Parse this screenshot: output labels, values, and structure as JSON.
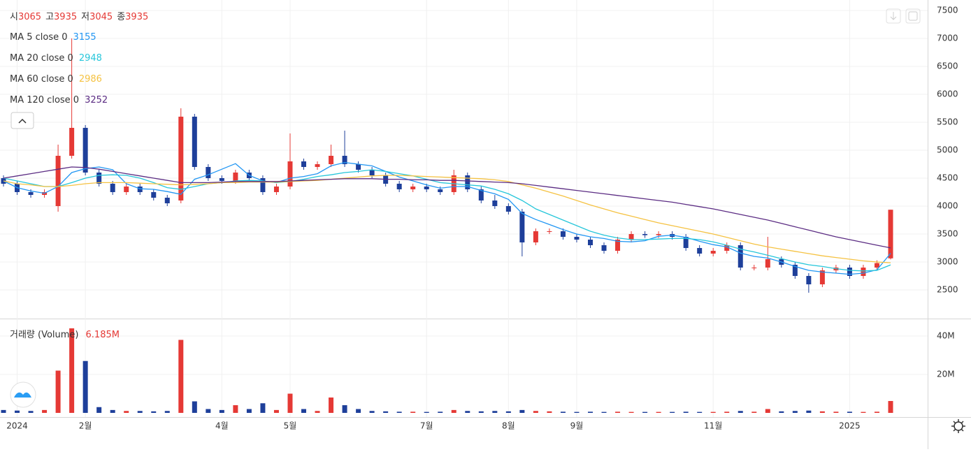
{
  "chart_data": {
    "type": "candlestick",
    "categories": [
      null,
      "2024",
      null,
      null,
      null,
      null,
      "2월",
      null,
      null,
      null,
      null,
      null,
      null,
      null,
      null,
      null,
      "4월",
      null,
      null,
      null,
      null,
      "5월",
      null,
      null,
      null,
      null,
      null,
      null,
      null,
      null,
      null,
      "7월",
      null,
      null,
      null,
      null,
      null,
      "8월",
      null,
      null,
      null,
      null,
      "9월",
      null,
      null,
      null,
      null,
      null,
      null,
      null,
      null,
      null,
      "11월",
      null,
      null,
      null,
      null,
      null,
      null,
      null,
      null,
      null,
      "2025",
      null,
      null,
      null
    ],
    "open": [
      4500,
      4400,
      4250,
      4200,
      4000,
      4900,
      5400,
      4600,
      4400,
      4250,
      4350,
      4250,
      4150,
      4100,
      5600,
      4700,
      4500,
      4450,
      4600,
      4500,
      4250,
      4350,
      4800,
      4700,
      4750,
      4900,
      4750,
      4650,
      4550,
      4400,
      4300,
      4350,
      4300,
      4250,
      4550,
      4300,
      4100,
      4000,
      3900,
      3350,
      3550,
      3550,
      3450,
      3400,
      3300,
      3200,
      3400,
      3500,
      3480,
      3500,
      3450,
      3250,
      3150,
      3200,
      3300,
      2900,
      2900,
      3050,
      2950,
      2750,
      2600,
      2850,
      2900,
      2750,
      2900,
      3065
    ],
    "high": [
      4550,
      4450,
      4300,
      4300,
      5100,
      7000,
      5450,
      4650,
      4450,
      4400,
      4400,
      4300,
      4200,
      5750,
      5650,
      4750,
      4550,
      4650,
      4650,
      4550,
      4400,
      5300,
      4850,
      4800,
      5100,
      5350,
      4800,
      4700,
      4600,
      4450,
      4400,
      4400,
      4350,
      4650,
      4600,
      4350,
      4200,
      4050,
      3950,
      3600,
      3600,
      3600,
      3500,
      3450,
      3350,
      3450,
      3550,
      3550,
      3550,
      3550,
      3500,
      3300,
      3250,
      3350,
      3350,
      2950,
      3450,
      3100,
      3000,
      2800,
      2900,
      2950,
      2950,
      2950,
      3030,
      3935
    ],
    "low": [
      4350,
      4200,
      4150,
      4150,
      3900,
      4850,
      4550,
      4350,
      4200,
      4200,
      4200,
      4100,
      4000,
      4050,
      4650,
      4450,
      4400,
      4400,
      4450,
      4200,
      4200,
      4300,
      4650,
      4650,
      4700,
      4700,
      4600,
      4500,
      4350,
      4250,
      4250,
      4250,
      4200,
      4200,
      4250,
      4050,
      3950,
      3850,
      3100,
      3300,
      3500,
      3400,
      3350,
      3250,
      3150,
      3150,
      3350,
      3430,
      3430,
      3400,
      3200,
      3100,
      3100,
      3150,
      2850,
      2850,
      2850,
      2900,
      2700,
      2450,
      2550,
      2800,
      2700,
      2700,
      2850,
      3045
    ],
    "close": [
      4400,
      4250,
      4200,
      4250,
      4900,
      5400,
      4600,
      4400,
      4250,
      4350,
      4250,
      4150,
      4050,
      5600,
      4700,
      4500,
      4450,
      4600,
      4500,
      4250,
      4350,
      4800,
      4700,
      4750,
      4900,
      4750,
      4650,
      4550,
      4400,
      4300,
      4350,
      4300,
      4250,
      4550,
      4300,
      4100,
      4000,
      3900,
      3350,
      3550,
      3550,
      3450,
      3400,
      3300,
      3200,
      3400,
      3500,
      3480,
      3500,
      3450,
      3250,
      3150,
      3200,
      3300,
      2900,
      2900,
      3050,
      2950,
      2750,
      2600,
      2850,
      2900,
      2750,
      2900,
      2980,
      3935
    ],
    "up_color": "#e53935",
    "down_color": "#1e3f9a",
    "ohlc_labels": [
      "시",
      "고",
      "저",
      "종"
    ],
    "ylim": [
      2000,
      7500
    ],
    "yticks": [
      2500,
      3000,
      3500,
      4000,
      4500,
      5000,
      5500,
      6000,
      6500,
      7000,
      7500
    ],
    "grid": true,
    "series": [
      {
        "name": "MA 5 close 0",
        "color": "#2196f3",
        "values": [
          4450,
          4330,
          4270,
          4230,
          4350,
          4600,
          4670,
          4700,
          4650,
          4400,
          4310,
          4300,
          4260,
          4210,
          4480,
          4560,
          4660,
          4760,
          4550,
          4450,
          4420,
          4500,
          4530,
          4580,
          4720,
          4780,
          4750,
          4720,
          4620,
          4520,
          4450,
          4380,
          4320,
          4350,
          4350,
          4280,
          4220,
          4120,
          3870,
          3760,
          3670,
          3580,
          3500,
          3450,
          3420,
          3370,
          3360,
          3380,
          3460,
          3480,
          3440,
          3370,
          3310,
          3270,
          3160,
          3100,
          3070,
          3000,
          2920,
          2850,
          2820,
          2800,
          2780,
          2800,
          2860,
          3155
        ]
      },
      {
        "name": "MA 20 close 0",
        "color": "#26c6da",
        "values": [
          4500,
          4450,
          4400,
          4350,
          4350,
          4420,
          4500,
          4550,
          4560,
          4550,
          4500,
          4420,
          4330,
          4300,
          4350,
          4400,
          4420,
          4450,
          4460,
          4450,
          4420,
          4440,
          4480,
          4530,
          4560,
          4600,
          4620,
          4650,
          4620,
          4580,
          4540,
          4480,
          4420,
          4400,
          4380,
          4360,
          4300,
          4220,
          4100,
          3950,
          3850,
          3750,
          3650,
          3550,
          3480,
          3430,
          3400,
          3400,
          3410,
          3420,
          3420,
          3400,
          3360,
          3300,
          3230,
          3180,
          3120,
          3060,
          3000,
          2950,
          2920,
          2880,
          2850,
          2840,
          2850,
          2948
        ]
      },
      {
        "name": "MA 60 close 0",
        "color": "#f5c242",
        "values": [
          4450,
          4400,
          4380,
          4350,
          4350,
          4370,
          4400,
          4420,
          4420,
          4420,
          4410,
          4400,
          4390,
          4380,
          4390,
          4400,
          4420,
          4420,
          4430,
          4430,
          4430,
          4440,
          4450,
          4460,
          4480,
          4500,
          4520,
          4540,
          4550,
          4550,
          4540,
          4530,
          4520,
          4510,
          4500,
          4490,
          4470,
          4440,
          4380,
          4320,
          4250,
          4180,
          4100,
          4020,
          3950,
          3880,
          3820,
          3760,
          3700,
          3650,
          3600,
          3550,
          3500,
          3440,
          3380,
          3320,
          3270,
          3230,
          3190,
          3150,
          3110,
          3080,
          3050,
          3020,
          3000,
          2986
        ]
      },
      {
        "name": "MA 120 close 0",
        "color": "#5b2c83",
        "values": [
          4500,
          4540,
          4580,
          4620,
          4660,
          4700,
          4690,
          4660,
          4620,
          4580,
          4540,
          4500,
          4460,
          4420,
          4420,
          4420,
          4430,
          4440,
          4440,
          4440,
          4440,
          4450,
          4460,
          4470,
          4480,
          4490,
          4490,
          4490,
          4480,
          4480,
          4470,
          4470,
          4460,
          4460,
          4450,
          4440,
          4430,
          4420,
          4400,
          4370,
          4340,
          4310,
          4280,
          4250,
          4220,
          4190,
          4160,
          4130,
          4100,
          4070,
          4030,
          3990,
          3950,
          3900,
          3850,
          3800,
          3750,
          3690,
          3630,
          3570,
          3510,
          3450,
          3400,
          3350,
          3300,
          3252
        ]
      }
    ],
    "volume": {
      "name": "거래량 (Volume)",
      "values": [
        1.5,
        1.2,
        1,
        1.5,
        22,
        44,
        27,
        3,
        1.5,
        1,
        1,
        0.8,
        1,
        38,
        6,
        2,
        1.5,
        4,
        2,
        5,
        1.5,
        10,
        2,
        1,
        8,
        4,
        2,
        1,
        0.8,
        0.6,
        0.6,
        0.5,
        0.6,
        1.5,
        1,
        0.8,
        1,
        0.8,
        1.5,
        1,
        0.8,
        0.6,
        0.5,
        0.6,
        0.5,
        0.6,
        0.5,
        0.5,
        0.5,
        0.5,
        0.6,
        0.5,
        0.5,
        0.6,
        1,
        0.6,
        2,
        0.8,
        1,
        1.2,
        0.8,
        0.6,
        0.6,
        0.5,
        0.6,
        6.185
      ],
      "value_labels": [
        null,
        null,
        null,
        null,
        null,
        null,
        null,
        null,
        null,
        null,
        null,
        null,
        null,
        null,
        null,
        null,
        null,
        null,
        null,
        null,
        null,
        null,
        null,
        null,
        null,
        null,
        null,
        null,
        null,
        null,
        null,
        null,
        null,
        null,
        null,
        null,
        null,
        null,
        null,
        null,
        null,
        null,
        null,
        null,
        null,
        null,
        null,
        null,
        null,
        null,
        null,
        null,
        null,
        null,
        null,
        null,
        null,
        null,
        null,
        null,
        null,
        null,
        null,
        null,
        null,
        "6.185M"
      ],
      "ylim": [
        0,
        48
      ],
      "yticks": [
        {
          "value": 20,
          "label": "20M"
        },
        {
          "value": 40,
          "label": "40M"
        }
      ]
    }
  }
}
